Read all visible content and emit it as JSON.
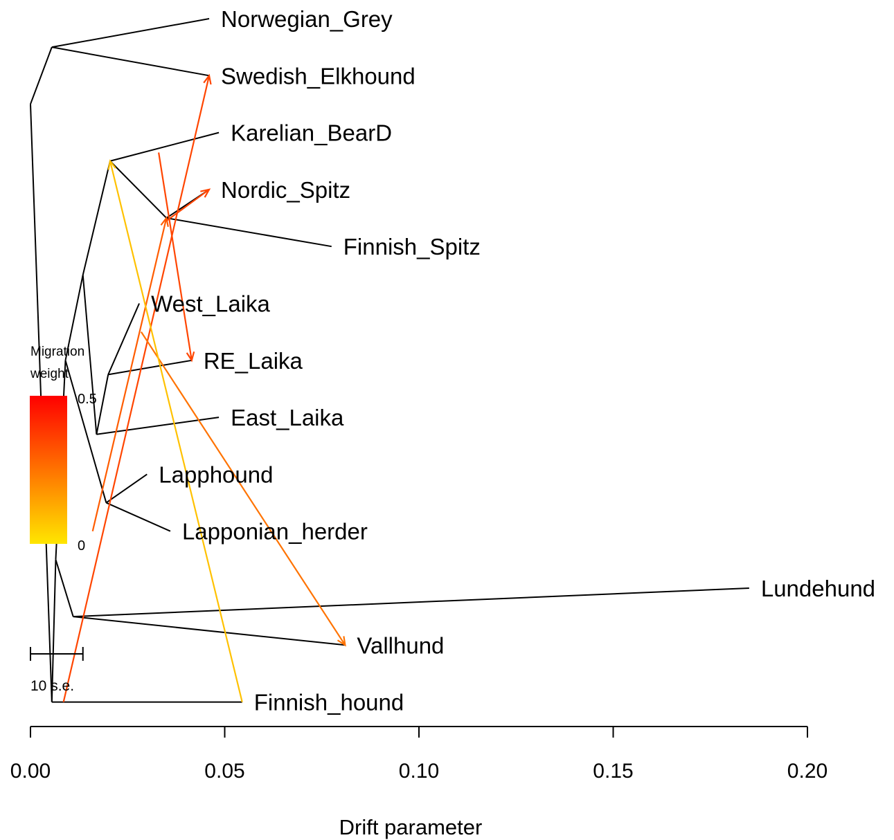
{
  "chart_data": {
    "type": "tree",
    "xlabel": "Drift parameter",
    "xlim": [
      0,
      0.2
    ],
    "x_ticks": [
      0.0,
      0.05,
      0.1,
      0.15,
      0.2
    ],
    "x_tick_labels": [
      "0.00",
      "0.05",
      "0.10",
      "0.15",
      "0.20"
    ],
    "leaves": [
      {
        "name": "Norwegian_Grey",
        "label": "Norwegian_Grey",
        "x": 0.046,
        "y": 1
      },
      {
        "name": "Swedish_Elkhound",
        "label": "Swedish_Elkhound",
        "x": 0.046,
        "y": 2
      },
      {
        "name": "Karelian_BearD",
        "label": "Karelian_BearD",
        "x": 0.0485,
        "y": 3
      },
      {
        "name": "Nordic_Spitz",
        "label": "Nordic_Spitz",
        "x": 0.046,
        "y": 4
      },
      {
        "name": "Finnish_Spitz",
        "label": "Finnish_Spitz",
        "x": 0.0775,
        "y": 5
      },
      {
        "name": "West_Laika",
        "label": "West_Laika",
        "x": 0.028,
        "y": 6
      },
      {
        "name": "RE_Laika",
        "label": "RE_Laika",
        "x": 0.0415,
        "y": 7
      },
      {
        "name": "East_Laika",
        "label": "East_Laika",
        "x": 0.0485,
        "y": 8
      },
      {
        "name": "Lapphound",
        "label": "Lapphound",
        "x": 0.03,
        "y": 9
      },
      {
        "name": "Lapponian_herder",
        "label": "Lapponian_herder",
        "x": 0.036,
        "y": 10
      },
      {
        "name": "Lundehund",
        "label": "Lundehund",
        "x": 0.185,
        "y": 11
      },
      {
        "name": "Vallhund",
        "label": "Vallhund",
        "x": 0.081,
        "y": 12
      },
      {
        "name": "Finnish_hound",
        "label": "Finnish_hound",
        "x": 0.0545,
        "y": 13
      }
    ],
    "internal_nodes": [
      {
        "id": "root",
        "x": 0.0055,
        "y": 13.0
      },
      {
        "id": "n1",
        "x": 0.0,
        "y": 2.5
      },
      {
        "id": "n2",
        "x": 0.0055,
        "y": 1.5
      },
      {
        "id": "n3",
        "x": 0.0065,
        "y": 10.5
      },
      {
        "id": "n4",
        "x": 0.009,
        "y": 7.0
      },
      {
        "id": "n5",
        "x": 0.0135,
        "y": 5.5
      },
      {
        "id": "n6",
        "x": 0.0205,
        "y": 3.5
      },
      {
        "id": "n7",
        "x": 0.035,
        "y": 4.5
      },
      {
        "id": "n8",
        "x": 0.017,
        "y": 8.3
      },
      {
        "id": "n9",
        "x": 0.02,
        "y": 7.25
      },
      {
        "id": "n10",
        "x": 0.0195,
        "y": 9.5
      },
      {
        "id": "n11",
        "x": 0.011,
        "y": 11.5
      }
    ],
    "edges": [
      [
        "root",
        "n1"
      ],
      [
        "n1",
        "n2"
      ],
      [
        "n2",
        "Norwegian_Grey"
      ],
      [
        "n2",
        "Swedish_Elkhound"
      ],
      [
        "root",
        "n3"
      ],
      [
        "n3",
        "n4"
      ],
      [
        "n4",
        "n5"
      ],
      [
        "n5",
        "n6"
      ],
      [
        "n6",
        "Karelian_BearD"
      ],
      [
        "n6",
        "n7"
      ],
      [
        "n7",
        "Nordic_Spitz"
      ],
      [
        "n7",
        "Finnish_Spitz"
      ],
      [
        "n5",
        "n8"
      ],
      [
        "n8",
        "n9"
      ],
      [
        "n9",
        "West_Laika"
      ],
      [
        "n9",
        "RE_Laika"
      ],
      [
        "n8",
        "East_Laika"
      ],
      [
        "n4",
        "n10"
      ],
      [
        "n10",
        "Lapphound"
      ],
      [
        "n10",
        "Lapponian_herder"
      ],
      [
        "n3",
        "n11"
      ],
      [
        "n11",
        "Lundehund"
      ],
      [
        "n11",
        "Vallhund"
      ],
      [
        "root",
        "Finnish_hound"
      ]
    ],
    "migrations": [
      {
        "from_x": 0.0085,
        "from_y": 13.0,
        "to_x": 0.046,
        "to_y": 2.0,
        "weight": 0.35
      },
      {
        "from_x": 0.016,
        "from_y": 10.0,
        "to_x": 0.035,
        "to_y": 4.5,
        "weight": 0.3
      },
      {
        "from_x": 0.033,
        "from_y": 3.35,
        "to_x": 0.0415,
        "to_y": 7.0,
        "weight": 0.35
      },
      {
        "from_x": 0.035,
        "from_y": 4.55,
        "to_x": 0.046,
        "to_y": 4.0,
        "weight": 0.35
      },
      {
        "from_x": 0.0285,
        "from_y": 6.5,
        "to_x": 0.081,
        "to_y": 12.0,
        "weight": 0.25
      },
      {
        "from_x": 0.0545,
        "from_y": 13.0,
        "to_x": 0.0205,
        "to_y": 3.5,
        "weight": 0.08
      }
    ],
    "legend": {
      "title_lines": [
        "Migration",
        "weight"
      ],
      "max_label": "0.5",
      "min_label": "0",
      "color_high": "#ff0000",
      "color_low": "#ffe600"
    },
    "scale_bar": {
      "label": "10 s.e.",
      "x": 0.0,
      "y": 12.2,
      "length": 0.0135
    }
  }
}
